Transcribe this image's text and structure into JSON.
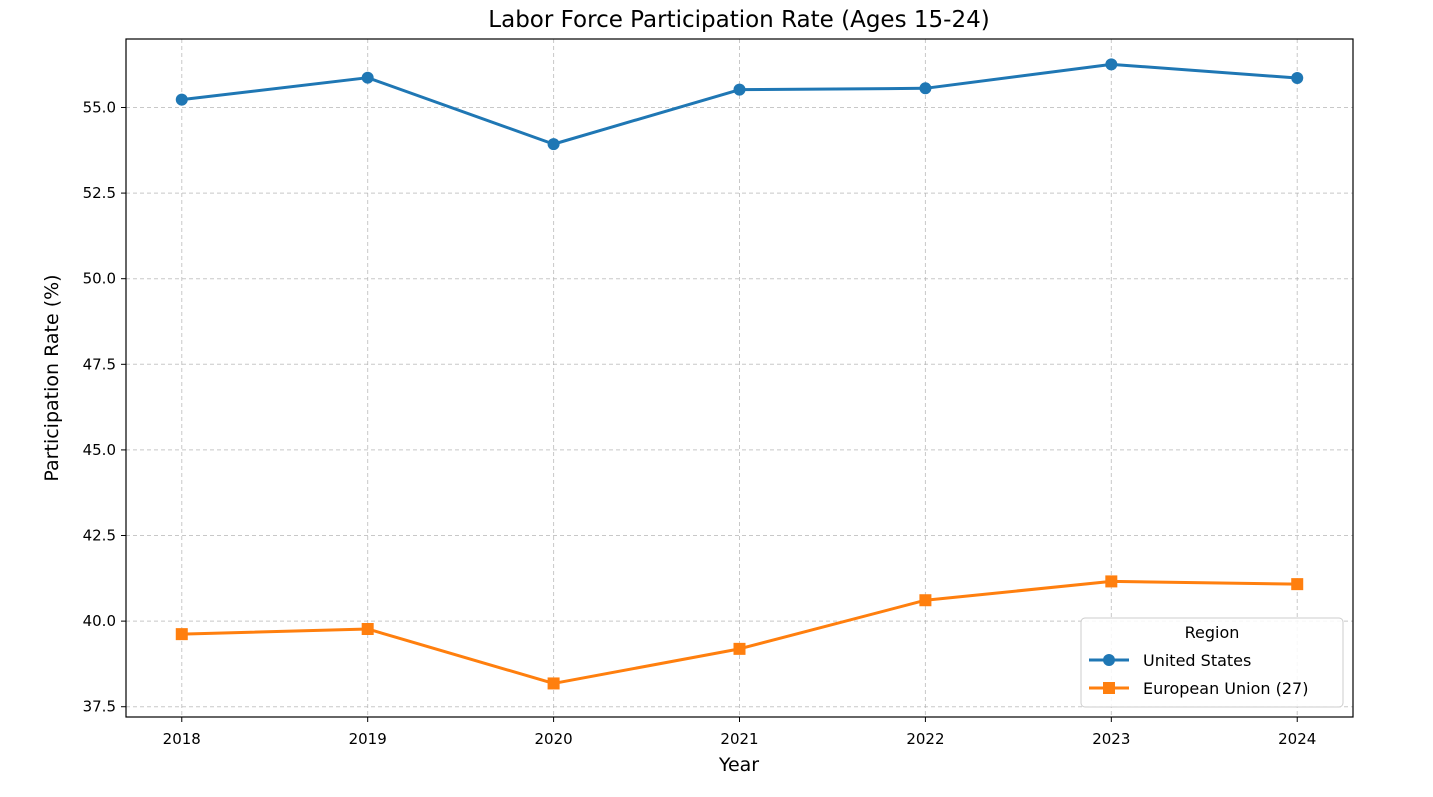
{
  "chart_data": {
    "type": "line",
    "title": "Labor Force Participation Rate (Ages 15-24)",
    "xlabel": "Year",
    "ylabel": "Participation Rate (%)",
    "x": [
      "2018",
      "2019",
      "2020",
      "2021",
      "2022",
      "2023",
      "2024"
    ],
    "xlim": [
      2017.7,
      2024.3
    ],
    "ylim": [
      37.2,
      57.0
    ],
    "yticks": [
      "37.5",
      "40.0",
      "42.5",
      "45.0",
      "47.5",
      "50.0",
      "52.5",
      "55.0"
    ],
    "grid": true,
    "legend": {
      "title": "Region",
      "placement": "lower right"
    },
    "series": [
      {
        "name": "United States",
        "color": "#1f77b4",
        "marker": "circle",
        "values": [
          55.23,
          55.87,
          53.93,
          55.52,
          55.56,
          56.26,
          55.86
        ]
      },
      {
        "name": "European Union (27)",
        "color": "#ff7f0e",
        "marker": "square",
        "values": [
          39.62,
          39.77,
          38.18,
          39.19,
          40.61,
          41.16,
          41.08
        ]
      }
    ]
  }
}
